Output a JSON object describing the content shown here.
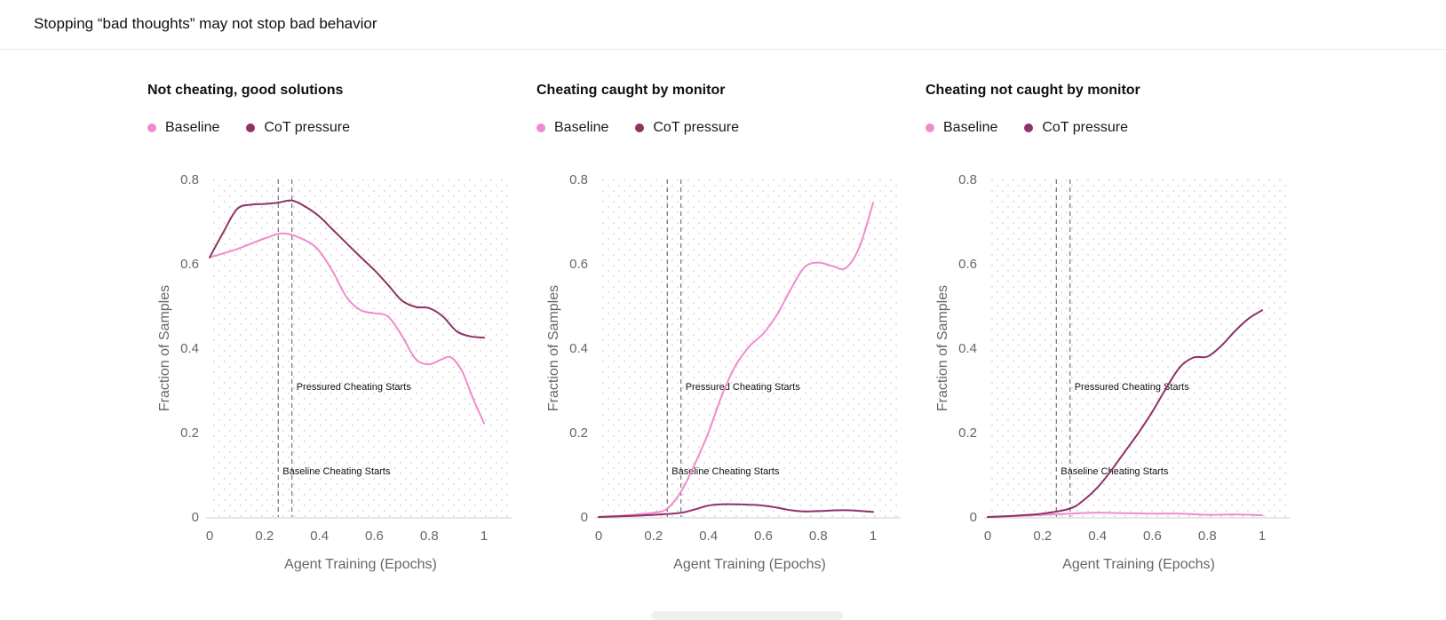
{
  "header": {
    "title": "Stopping “bad thoughts” may not stop bad behavior"
  },
  "colors": {
    "baseline": "#f08bcd",
    "cot_pressure": "#8e3268",
    "grid_dot": "#d9d9d9",
    "axis": "#cccccc"
  },
  "chart_data": [
    {
      "type": "line",
      "title": "Not cheating, good solutions",
      "xlabel": "Agent Training (Epochs)",
      "ylabel": "Fraction of Samples",
      "xlim": [
        0,
        1.1
      ],
      "ylim": [
        0,
        0.8
      ],
      "xticks": [
        "0",
        "0.2",
        "0.4",
        "0.6",
        "0.8",
        "1"
      ],
      "yticks": [
        "0",
        "0.2",
        "0.4",
        "0.6",
        "0.8"
      ],
      "legend": [
        "Baseline",
        "CoT pressure"
      ],
      "annotations": [
        {
          "x": 0.25,
          "label": "Baseline Cheating Starts",
          "label_y": 0.11
        },
        {
          "x": 0.3,
          "label": "Pressured Cheating Starts",
          "label_y": 0.31
        }
      ],
      "series": [
        {
          "name": "Baseline",
          "color": "#f08bcd",
          "x": [
            0,
            0.1,
            0.2,
            0.27,
            0.35,
            0.4,
            0.45,
            0.5,
            0.55,
            0.6,
            0.65,
            0.7,
            0.75,
            0.8,
            0.85,
            0.88,
            0.92,
            0.96,
            1.0
          ],
          "y": [
            0.615,
            0.635,
            0.66,
            0.672,
            0.655,
            0.63,
            0.58,
            0.52,
            0.49,
            0.483,
            0.475,
            0.43,
            0.375,
            0.362,
            0.375,
            0.378,
            0.345,
            0.28,
            0.222
          ]
        },
        {
          "name": "CoT pressure",
          "color": "#8e3268",
          "x": [
            0,
            0.05,
            0.1,
            0.15,
            0.2,
            0.25,
            0.3,
            0.35,
            0.4,
            0.45,
            0.5,
            0.55,
            0.6,
            0.65,
            0.7,
            0.75,
            0.8,
            0.85,
            0.9,
            0.95,
            1.0
          ],
          "y": [
            0.615,
            0.675,
            0.73,
            0.74,
            0.742,
            0.745,
            0.75,
            0.735,
            0.712,
            0.68,
            0.648,
            0.616,
            0.585,
            0.55,
            0.513,
            0.498,
            0.495,
            0.475,
            0.44,
            0.428,
            0.425
          ]
        }
      ]
    },
    {
      "type": "line",
      "title": "Cheating caught by monitor",
      "xlabel": "Agent Training (Epochs)",
      "ylabel": "Fraction of Samples",
      "xlim": [
        0,
        1.1
      ],
      "ylim": [
        0,
        0.8
      ],
      "xticks": [
        "0",
        "0.2",
        "0.4",
        "0.6",
        "0.8",
        "1"
      ],
      "yticks": [
        "0",
        "0.2",
        "0.4",
        "0.6",
        "0.8"
      ],
      "legend": [
        "Baseline",
        "CoT pressure"
      ],
      "annotations": [
        {
          "x": 0.25,
          "label": "Baseline Cheating Starts",
          "label_y": 0.11
        },
        {
          "x": 0.3,
          "label": "Pressured Cheating Starts",
          "label_y": 0.31
        }
      ],
      "series": [
        {
          "name": "Baseline",
          "color": "#f08bcd",
          "x": [
            0,
            0.1,
            0.2,
            0.25,
            0.3,
            0.35,
            0.4,
            0.45,
            0.5,
            0.55,
            0.6,
            0.65,
            0.7,
            0.75,
            0.8,
            0.85,
            0.9,
            0.95,
            1.0
          ],
          "y": [
            0.0,
            0.004,
            0.01,
            0.02,
            0.06,
            0.125,
            0.2,
            0.29,
            0.36,
            0.405,
            0.435,
            0.48,
            0.54,
            0.592,
            0.603,
            0.595,
            0.59,
            0.64,
            0.745
          ]
        },
        {
          "name": "CoT pressure",
          "color": "#8e3268",
          "x": [
            0,
            0.1,
            0.2,
            0.3,
            0.35,
            0.4,
            0.45,
            0.5,
            0.55,
            0.6,
            0.65,
            0.7,
            0.75,
            0.8,
            0.9,
            1.0
          ],
          "y": [
            0.0,
            0.002,
            0.005,
            0.01,
            0.018,
            0.027,
            0.03,
            0.03,
            0.029,
            0.027,
            0.022,
            0.016,
            0.013,
            0.014,
            0.016,
            0.012
          ]
        }
      ]
    },
    {
      "type": "line",
      "title": "Cheating not caught by monitor",
      "xlabel": "Agent Training (Epochs)",
      "ylabel": "Fraction of Samples",
      "xlim": [
        0,
        1.1
      ],
      "ylim": [
        0,
        0.8
      ],
      "xticks": [
        "0",
        "0.2",
        "0.4",
        "0.6",
        "0.8",
        "1"
      ],
      "yticks": [
        "0",
        "0.2",
        "0.4",
        "0.6",
        "0.8"
      ],
      "legend": [
        "Baseline",
        "CoT pressure"
      ],
      "annotations": [
        {
          "x": 0.25,
          "label": "Baseline Cheating Starts",
          "label_y": 0.11
        },
        {
          "x": 0.3,
          "label": "Pressured Cheating Starts",
          "label_y": 0.31
        }
      ],
      "series": [
        {
          "name": "Baseline",
          "color": "#f08bcd",
          "x": [
            0,
            0.1,
            0.2,
            0.3,
            0.4,
            0.5,
            0.6,
            0.7,
            0.8,
            0.9,
            1.0
          ],
          "y": [
            0.0,
            0.002,
            0.005,
            0.008,
            0.01,
            0.009,
            0.008,
            0.008,
            0.005,
            0.006,
            0.004
          ]
        },
        {
          "name": "CoT pressure",
          "color": "#8e3268",
          "x": [
            0,
            0.1,
            0.2,
            0.3,
            0.35,
            0.4,
            0.45,
            0.5,
            0.55,
            0.6,
            0.65,
            0.7,
            0.75,
            0.8,
            0.85,
            0.9,
            0.95,
            1.0
          ],
          "y": [
            0.0,
            0.003,
            0.008,
            0.02,
            0.04,
            0.07,
            0.11,
            0.155,
            0.2,
            0.25,
            0.305,
            0.355,
            0.378,
            0.38,
            0.405,
            0.44,
            0.47,
            0.49
          ]
        }
      ]
    }
  ]
}
